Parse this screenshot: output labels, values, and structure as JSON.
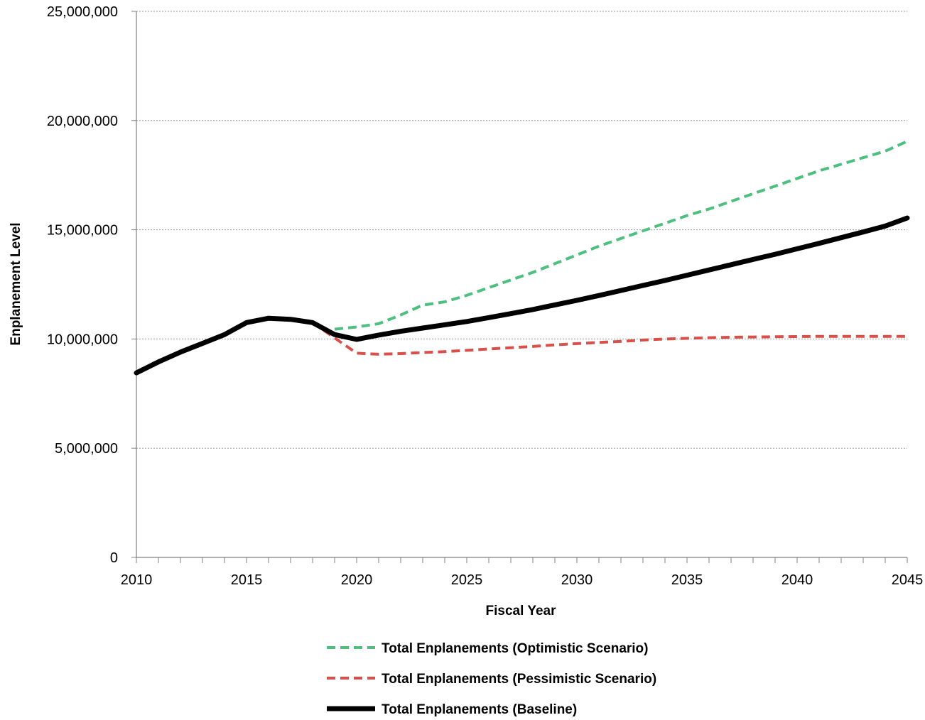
{
  "chart_data": {
    "type": "line",
    "title": "",
    "xlabel": "Fiscal Year",
    "ylabel": "Enplanement Level",
    "xlim": [
      2010,
      2045
    ],
    "ylim": [
      0,
      25000000
    ],
    "x_ticks": [
      2010,
      2015,
      2020,
      2025,
      2030,
      2035,
      2040,
      2045
    ],
    "x_tick_labels": [
      "2010",
      "2015",
      "2020",
      "2025",
      "2030",
      "2035",
      "2040",
      "2045"
    ],
    "y_ticks": [
      0,
      5000000,
      10000000,
      15000000,
      20000000,
      25000000
    ],
    "y_tick_labels": [
      "0",
      "5,000,000",
      "10,000,000",
      "15,000,000",
      "20,000,000",
      "25,000,000"
    ],
    "grid": "horizontal dotted",
    "legend_position": "bottom",
    "series": [
      {
        "name": "Total Enplanements (Optimistic Scenario)",
        "color": "#4dbf7e",
        "style": "dashed",
        "x": [
          2019,
          2020,
          2021,
          2022,
          2023,
          2024,
          2025,
          2026,
          2027,
          2028,
          2029,
          2030,
          2031,
          2032,
          2033,
          2034,
          2035,
          2036,
          2037,
          2038,
          2039,
          2040,
          2041,
          2042,
          2043,
          2044,
          2045
        ],
        "values": [
          10450000,
          10550000,
          10700000,
          11100000,
          11550000,
          11700000,
          12000000,
          12350000,
          12700000,
          13050000,
          13450000,
          13850000,
          14250000,
          14600000,
          14950000,
          15300000,
          15650000,
          15950000,
          16300000,
          16650000,
          17000000,
          17350000,
          17700000,
          18000000,
          18300000,
          18600000,
          19050000
        ]
      },
      {
        "name": "Total Enplanements (Pessimistic Scenario)",
        "color": "#d9504a",
        "style": "dashed",
        "x": [
          2018,
          2019,
          2020,
          2021,
          2022,
          2023,
          2024,
          2025,
          2026,
          2027,
          2028,
          2029,
          2030,
          2031,
          2032,
          2033,
          2034,
          2035,
          2036,
          2037,
          2038,
          2039,
          2040,
          2041,
          2042,
          2043,
          2044,
          2045
        ],
        "values": [
          10750000,
          10050000,
          9350000,
          9300000,
          9330000,
          9380000,
          9420000,
          9480000,
          9540000,
          9600000,
          9660000,
          9730000,
          9790000,
          9840000,
          9890000,
          9950000,
          10000000,
          10030000,
          10060000,
          10080000,
          10090000,
          10100000,
          10110000,
          10120000,
          10120000,
          10120000,
          10120000,
          10120000
        ]
      },
      {
        "name": "Total Enplanements (Baseline)",
        "color": "#000000",
        "style": "solid",
        "x": [
          2010,
          2011,
          2012,
          2013,
          2014,
          2015,
          2016,
          2017,
          2018,
          2019,
          2020,
          2021,
          2022,
          2023,
          2024,
          2025,
          2026,
          2027,
          2028,
          2029,
          2030,
          2031,
          2032,
          2033,
          2034,
          2035,
          2036,
          2037,
          2038,
          2039,
          2040,
          2041,
          2042,
          2043,
          2044,
          2045
        ],
        "values": [
          8450000,
          8950000,
          9400000,
          9800000,
          10200000,
          10750000,
          10950000,
          10900000,
          10750000,
          10200000,
          9980000,
          10180000,
          10350000,
          10500000,
          10650000,
          10800000,
          10980000,
          11160000,
          11350000,
          11560000,
          11770000,
          11990000,
          12220000,
          12450000,
          12680000,
          12920000,
          13160000,
          13400000,
          13640000,
          13880000,
          14130000,
          14380000,
          14640000,
          14900000,
          15170000,
          15540000
        ]
      }
    ]
  }
}
